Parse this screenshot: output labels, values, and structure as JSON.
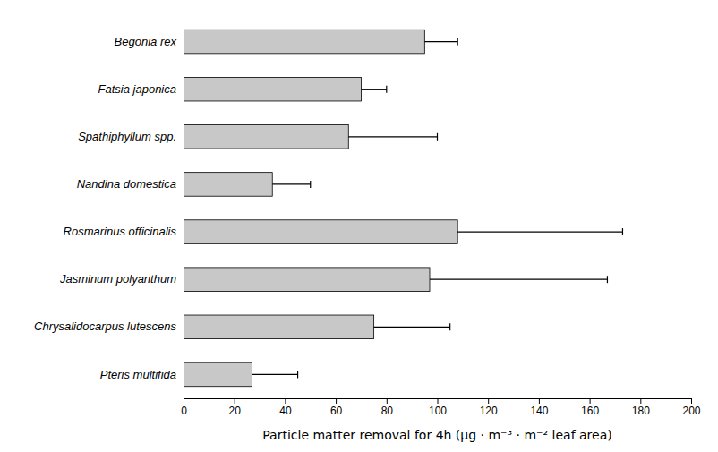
{
  "chart_data": {
    "type": "bar",
    "orientation": "horizontal",
    "categories": [
      "Begonia rex",
      "Fatsia japonica",
      "Spathiphyllum spp.",
      "Nandina domestica",
      "Rosmarinus officinalis",
      "Jasminum polyanthum",
      "Chrysalidocarpus lutescens",
      "Pteris multifida"
    ],
    "values": [
      95,
      70,
      65,
      35,
      108,
      97,
      75,
      27
    ],
    "errors": [
      13,
      10,
      35,
      15,
      65,
      70,
      30,
      18
    ],
    "color": "#c8c8c8",
    "xlabel": "Particle matter removal for 4h (μg · m⁻³ · m⁻² leaf area)",
    "xlim": [
      0,
      200
    ],
    "xticks": [
      0,
      20,
      40,
      60,
      80,
      100,
      120,
      140,
      160,
      180,
      200
    ],
    "grid": false
  }
}
